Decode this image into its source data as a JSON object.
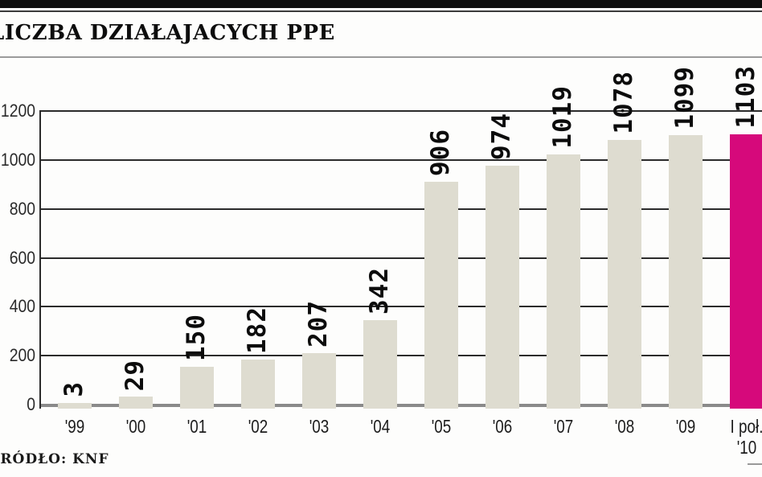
{
  "header": {
    "title": "LICZBA DZIAŁAJACYCH PPE"
  },
  "footer": {
    "source": "ŹRÓDŁO: KNF"
  },
  "chart_data": {
    "type": "bar",
    "title": "LICZBA DZIAŁAJACYCH PPE",
    "categories": [
      "'99",
      "'00",
      "'01",
      "'02",
      "'03",
      "'04",
      "'05",
      "'06",
      "'07",
      "'08",
      "'09",
      "I poł.\n'10"
    ],
    "values": [
      3,
      29,
      150,
      182,
      207,
      342,
      906,
      974,
      1019,
      1078,
      1099,
      1103
    ],
    "ylim": [
      0,
      1200
    ],
    "yticks": [
      0,
      200,
      400,
      600,
      800,
      1000,
      1200
    ],
    "grid": true,
    "value_labels": "rotated 90° above bars",
    "highlight_index": 11,
    "colors": {
      "bar": "#dedcd0",
      "highlight": "#d6097b",
      "gridline": "#2b2b2b",
      "baseline": "#8a8a8a",
      "title_text": "#0d0d0d",
      "axis_text": "#2a2a2a"
    },
    "source": "ŹRÓDŁO: KNF"
  }
}
